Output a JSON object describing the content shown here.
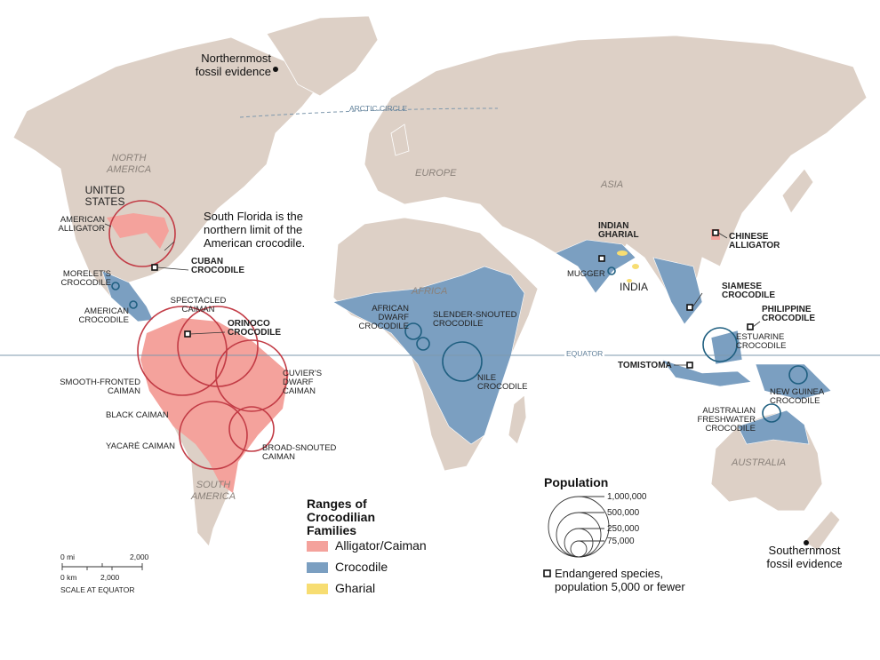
{
  "colors": {
    "land": "#ddd0c6",
    "alligator": "#f4a29c",
    "crocodile": "#7b9fc1",
    "gharial": "#f7dd72",
    "circle_alligator": "#c23b45",
    "circle_crocodile": "#1f5f80",
    "lines": "#7e98ad"
  },
  "lines": {
    "arctic": "ARCTIC CIRCLE",
    "equator": "EQUATOR"
  },
  "continents": {
    "north_america": "NORTH AMERICA",
    "south_america": "SOUTH AMERICA",
    "europe": "EUROPE",
    "asia": "ASIA",
    "africa": "AFRICA",
    "australia": "AUSTRALIA"
  },
  "countries": {
    "us": "UNITED STATES",
    "india": "INDIA"
  },
  "notes": {
    "north": "Northernmost fossil evidence",
    "south": "Southernmost fossil evidence",
    "florida": "South Florida is the northern limit of the American crocodile."
  },
  "species": {
    "american_alligator": "AMERICAN ALLIGATOR",
    "cuban": "CUBAN CROCODILE",
    "morelet": "MORELET'S CROCODILE",
    "american_croc": "AMERICAN CROCODILE",
    "spectacled": "SPECTACLED CAIMAN",
    "orinoco": "ORINOCO CROCODILE",
    "smooth": "SMOOTH-FRONTED CAIMAN",
    "cuvier": "CUVIER'S DWARF CAIMAN",
    "black": "BLACK CAIMAN",
    "yacare": "YACARÉ CAIMAN",
    "broad": "BROAD-SNOUTED CAIMAN",
    "african_dwarf": "AFRICAN DWARF CROCODILE",
    "slender": "SLENDER-SNOUTED CROCODILE",
    "nile": "NILE CROCODILE",
    "indian_gharial": "INDIAN GHARIAL",
    "mugger": "MUGGER",
    "chinese": "CHINESE ALLIGATOR",
    "siamese": "SIAMESE CROCODILE",
    "philippine": "PHILIPPINE CROCODILE",
    "estuarine": "ESTUARINE CROCODILE",
    "tomistoma": "TOMISTOMA",
    "new_guinea": "NEW GUINEA CROCODILE",
    "aus_fresh": "AUSTRALIAN FRESHWATER CROCODILE"
  },
  "legend": {
    "title": "Ranges of Crocodilian Families",
    "items": [
      {
        "label": "Alligator/Caiman"
      },
      {
        "label": "Crocodile"
      },
      {
        "label": "Gharial"
      }
    ]
  },
  "population": {
    "title": "Population",
    "sizes": [
      "1,000,000",
      "500,000",
      "250,000",
      "75,000"
    ],
    "endangered": "Endangered species, population 5,000 or fewer"
  },
  "scale": {
    "mi0": "0 mi",
    "mi": "2,000",
    "km0": "0 km",
    "km": "2,000",
    "caption": "SCALE AT EQUATOR"
  }
}
